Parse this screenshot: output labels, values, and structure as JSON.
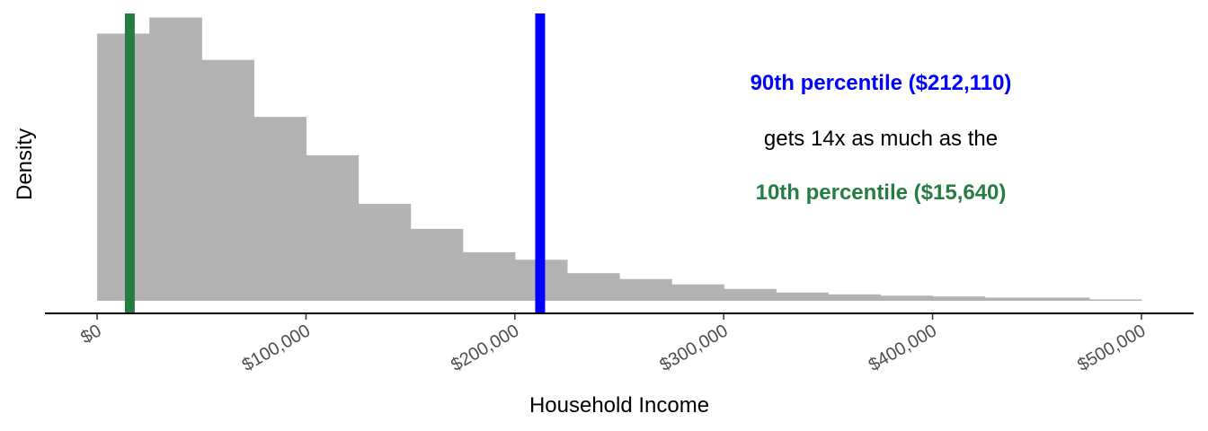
{
  "chart_data": {
    "type": "histogram",
    "title": "",
    "xlabel": "Household Income",
    "ylabel": "Density",
    "xlim": [
      -25000,
      525000
    ],
    "ylim": [
      0,
      1.07
    ],
    "x_ticks": [
      0,
      100000,
      200000,
      300000,
      400000,
      500000
    ],
    "x_tick_labels": [
      "$0",
      "$100,000",
      "$200,000",
      "$300,000",
      "$400,000",
      "$500,000"
    ],
    "y_ticks_shown": false,
    "grid": false,
    "bin_width": 25000,
    "bins": [
      {
        "start": 0,
        "end": 25000,
        "density": 0.995
      },
      {
        "start": 25000,
        "end": 50000,
        "density": 1.055
      },
      {
        "start": 50000,
        "end": 75000,
        "density": 0.897
      },
      {
        "start": 75000,
        "end": 100000,
        "density": 0.685
      },
      {
        "start": 100000,
        "end": 125000,
        "density": 0.542
      },
      {
        "start": 125000,
        "end": 150000,
        "density": 0.361
      },
      {
        "start": 150000,
        "end": 175000,
        "density": 0.268
      },
      {
        "start": 175000,
        "end": 200000,
        "density": 0.181
      },
      {
        "start": 200000,
        "end": 225000,
        "density": 0.153
      },
      {
        "start": 225000,
        "end": 250000,
        "density": 0.103
      },
      {
        "start": 250000,
        "end": 275000,
        "density": 0.081
      },
      {
        "start": 275000,
        "end": 300000,
        "density": 0.061
      },
      {
        "start": 300000,
        "end": 325000,
        "density": 0.044
      },
      {
        "start": 325000,
        "end": 350000,
        "density": 0.031
      },
      {
        "start": 350000,
        "end": 375000,
        "density": 0.024
      },
      {
        "start": 375000,
        "end": 400000,
        "density": 0.019
      },
      {
        "start": 400000,
        "end": 425000,
        "density": 0.016
      },
      {
        "start": 425000,
        "end": 450000,
        "density": 0.012
      },
      {
        "start": 450000,
        "end": 475000,
        "density": 0.012
      },
      {
        "start": 475000,
        "end": 500000,
        "density": 0.005
      }
    ],
    "reference_lines": [
      {
        "name": "90th percentile",
        "value": 212110,
        "color": "#0000ff"
      },
      {
        "name": "10th percentile",
        "value": 15640,
        "color": "#267d43"
      }
    ],
    "annotations": [
      {
        "text": "90th percentile ($212,110)",
        "color": "#0000ff",
        "bold": true
      },
      {
        "text": "gets 14x as much as the",
        "color": "#000000",
        "bold": false
      },
      {
        "text": "10th percentile ($15,640)",
        "color": "#267d43",
        "bold": true
      }
    ],
    "bar_color": "#b3b3b3"
  }
}
